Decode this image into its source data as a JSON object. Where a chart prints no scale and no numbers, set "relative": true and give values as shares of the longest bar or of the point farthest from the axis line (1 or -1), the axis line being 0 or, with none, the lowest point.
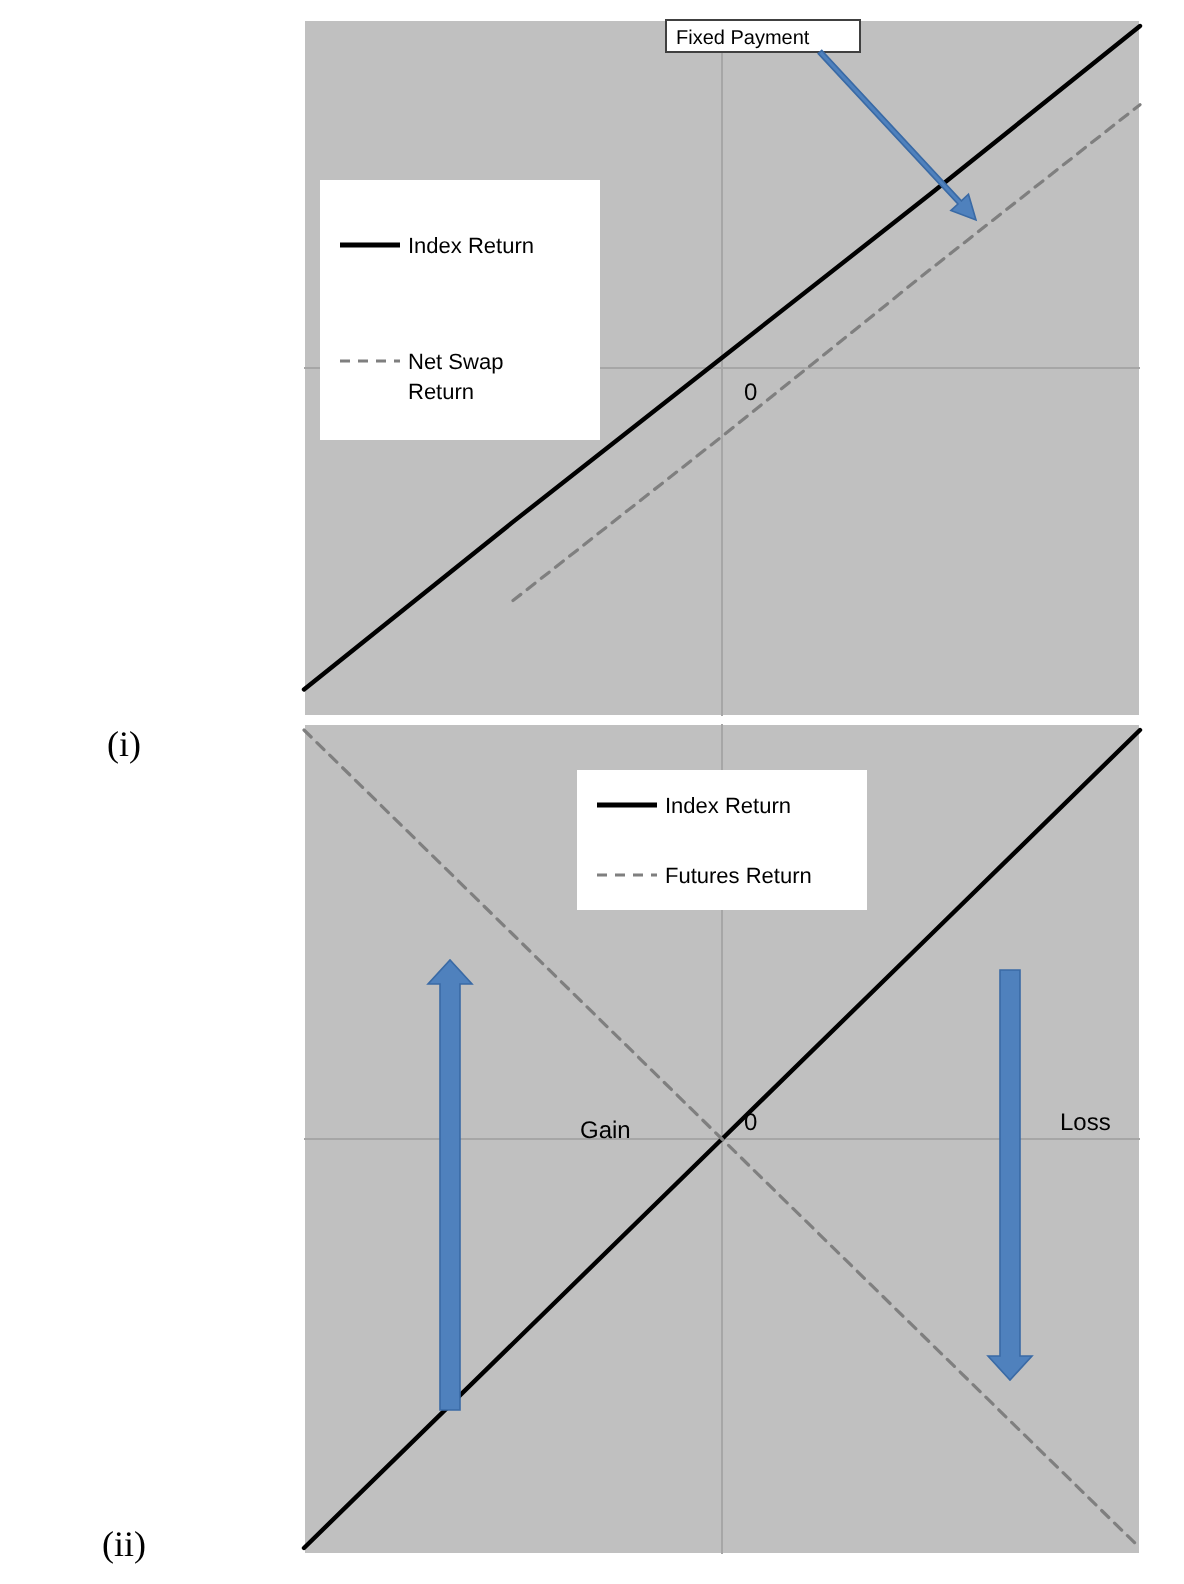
{
  "chart_data": [
    {
      "type": "line",
      "title": "(i)",
      "relative": true,
      "categories": [
        null,
        null,
        null,
        null,
        null
      ],
      "legend": "top left",
      "annotations": [
        "Fixed Payment",
        "0"
      ],
      "series": [
        {
          "name": "Index Return",
          "color": "#000000",
          "line_style": "solid",
          "values": [
            -0.94,
            -0.45,
            0.03,
            0.51,
            1.0
          ]
        },
        {
          "name": "Net Swap Return",
          "color": "#7f7f7f",
          "line_style": "dashed",
          "values": [
            null,
            -0.68,
            -0.2,
            0.29,
            0.77
          ]
        }
      ]
    },
    {
      "type": "line",
      "title": "(ii)",
      "relative": true,
      "categories": [
        null,
        null,
        null,
        null,
        null
      ],
      "legend": "top",
      "annotations": [
        "0",
        "Gain",
        "Loss"
      ],
      "series": [
        {
          "name": "Index Return",
          "color": "#000000",
          "line_style": "solid",
          "values": [
            -1,
            -0.5,
            0,
            0.5,
            1
          ]
        },
        {
          "name": "Futures Return",
          "color": "#7f7f7f",
          "line_style": "dashed",
          "values": [
            1,
            0.5,
            0,
            -0.5,
            -1
          ]
        }
      ]
    }
  ]
}
